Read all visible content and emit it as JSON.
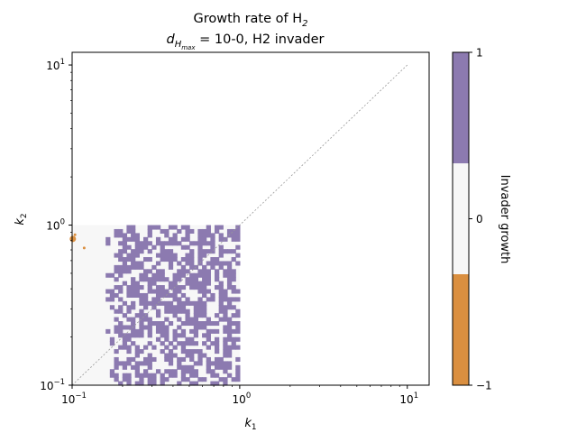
{
  "chart_data": {
    "type": "heatmap",
    "title_line1": "Growth rate of H",
    "title_line1_sub": "2",
    "title_line2_prefix": "d",
    "title_line2_sub": "H",
    "title_line2_subsub": "max",
    "title_line2_suffix": " = 10-0, H2 invader",
    "xlabel": "k",
    "xlabel_sub": "1",
    "ylabel": "k",
    "ylabel_sub": "2",
    "xscale": "log",
    "yscale": "log",
    "xlim": [
      0.1,
      13.5
    ],
    "ylim": [
      0.1,
      12
    ],
    "x_ticks": [
      {
        "value": 0.1,
        "base": "10",
        "exp": "−1"
      },
      {
        "value": 1,
        "base": "10",
        "exp": "0"
      },
      {
        "value": 10,
        "base": "10",
        "exp": "1"
      }
    ],
    "y_ticks": [
      {
        "value": 0.1,
        "base": "10",
        "exp": "−1"
      },
      {
        "value": 1,
        "base": "10",
        "exp": "0"
      },
      {
        "value": 10,
        "base": "10",
        "exp": "1"
      }
    ],
    "diagonal_line": {
      "from": [
        0.1,
        0.1
      ],
      "to": [
        10,
        10
      ],
      "style": "dotted",
      "color": "#999999"
    },
    "grid": false,
    "data_region": {
      "k1_range": [
        0.1,
        1
      ],
      "k2_range": [
        0.1,
        1
      ]
    },
    "neutral_color": "#f7f7f7",
    "positive_color": "#8c7ab0",
    "negative_color": "#da8f40",
    "negative_points": [
      {
        "k1": 0.101,
        "k2": 0.82,
        "size": "large"
      },
      {
        "k1": 0.104,
        "k2": 0.87,
        "size": "small"
      },
      {
        "k1": 0.118,
        "k2": 0.72,
        "size": "small"
      }
    ],
    "colorbar": {
      "label": "Invader growth",
      "ticks": [
        {
          "value": 1,
          "label": "1"
        },
        {
          "value": 0,
          "label": "0"
        },
        {
          "value": -1,
          "label": "−1"
        }
      ],
      "segments": [
        {
          "from": -1,
          "to": -0.333,
          "color": "#da8f40"
        },
        {
          "from": -0.333,
          "to": 0.333,
          "color": "#f7f7f7"
        },
        {
          "from": 0.333,
          "to": 1,
          "color": "#8c7ab0"
        }
      ]
    }
  }
}
